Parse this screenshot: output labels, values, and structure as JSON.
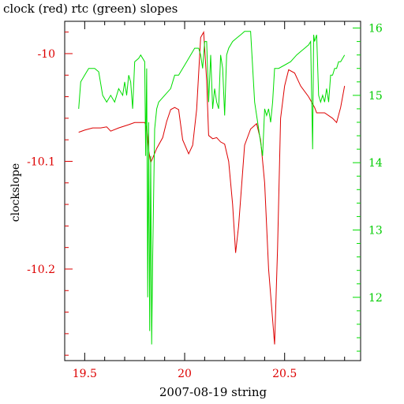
{
  "chart_data": {
    "type": "line",
    "title": "clock (red) rtc (green) slopes",
    "xlabel": "2007-08-19 string",
    "ylabel": "clockslope",
    "xlim": [
      19.4,
      20.88
    ],
    "ylim": [
      -10.285,
      -9.97
    ],
    "y2lim": [
      11.06,
      16.1
    ],
    "x_ticks": [
      19.5,
      20,
      20.5
    ],
    "x_tick_labels": [
      "19.5",
      "20",
      "20.5"
    ],
    "y_ticks": [
      -10,
      -10.1,
      -10.2
    ],
    "y_tick_labels": [
      "-10",
      "-10.1",
      "-10.2"
    ],
    "y2_ticks": [
      12,
      13,
      14,
      15,
      16
    ],
    "y2_tick_labels": [
      "12",
      "13",
      "14",
      "15",
      "16"
    ],
    "colors": {
      "clock": "#dd0000",
      "rtc": "#00dd00",
      "axes": "#000000"
    },
    "series": [
      {
        "name": "clock",
        "axis": "left",
        "x": [
          19.47,
          19.5,
          19.54,
          19.58,
          19.61,
          19.63,
          19.67,
          19.72,
          19.75,
          19.8,
          19.81,
          19.82,
          19.83,
          19.84,
          19.86,
          19.89,
          19.91,
          19.93,
          19.95,
          19.97,
          19.99,
          20.02,
          20.04,
          20.06,
          20.08,
          20.095,
          20.11,
          20.12,
          20.14,
          20.16,
          20.18,
          20.2,
          20.22,
          20.24,
          20.255,
          20.27,
          20.3,
          20.33,
          20.36,
          20.38,
          20.4,
          20.42,
          20.45,
          20.465,
          20.48,
          20.5,
          20.52,
          20.55,
          20.58,
          20.62,
          20.65,
          20.66,
          20.7,
          20.74,
          20.76,
          20.78,
          20.8
        ],
        "y": [
          -10.073,
          -10.071,
          -10.069,
          -10.069,
          -10.068,
          -10.072,
          -10.069,
          -10.066,
          -10.064,
          -10.064,
          -10.068,
          -10.09,
          -10.101,
          -10.097,
          -10.088,
          -10.078,
          -10.063,
          -10.052,
          -10.05,
          -10.052,
          -10.08,
          -10.093,
          -10.085,
          -10.052,
          -9.985,
          -9.98,
          -10.025,
          -10.076,
          -10.079,
          -10.078,
          -10.082,
          -10.084,
          -10.1,
          -10.14,
          -10.185,
          -10.16,
          -10.085,
          -10.07,
          -10.065,
          -10.08,
          -10.12,
          -10.2,
          -10.27,
          -10.18,
          -10.06,
          -10.03,
          -10.015,
          -10.018,
          -10.03,
          -10.04,
          -10.05,
          -10.055,
          -10.055,
          -10.06,
          -10.064,
          -10.05,
          -10.03
        ]
      },
      {
        "name": "rtc",
        "axis": "right",
        "x": [
          19.47,
          19.48,
          19.5,
          19.52,
          19.55,
          19.57,
          19.59,
          19.61,
          19.63,
          19.65,
          19.67,
          19.69,
          19.7,
          19.71,
          19.72,
          19.73,
          19.74,
          19.75,
          19.77,
          19.78,
          19.8,
          19.805,
          19.81,
          19.815,
          19.82,
          19.825,
          19.83,
          19.835,
          19.84,
          19.85,
          19.86,
          19.87,
          19.9,
          19.93,
          19.95,
          19.97,
          19.99,
          20.01,
          20.03,
          20.05,
          20.07,
          20.08,
          20.09,
          20.1,
          20.11,
          20.12,
          20.13,
          20.14,
          20.15,
          20.16,
          20.17,
          20.18,
          20.19,
          20.2,
          20.21,
          20.22,
          20.24,
          20.26,
          20.28,
          20.3,
          20.33,
          20.35,
          20.37,
          20.38,
          20.39,
          20.4,
          20.41,
          20.42,
          20.43,
          20.44,
          20.45,
          20.46,
          20.47,
          20.5,
          20.53,
          20.56,
          20.58,
          20.6,
          20.62,
          20.63,
          20.64,
          20.645,
          20.65,
          20.66,
          20.67,
          20.68,
          20.69,
          20.7,
          20.71,
          20.72,
          20.73,
          20.74,
          20.75,
          20.76,
          20.77,
          20.78,
          20.8
        ],
        "y": [
          14.8,
          15.2,
          15.3,
          15.4,
          15.4,
          15.35,
          15.0,
          14.9,
          15.0,
          14.9,
          15.1,
          15.0,
          15.2,
          15.0,
          15.3,
          15.2,
          14.8,
          15.5,
          15.55,
          15.6,
          15.5,
          14.1,
          15.4,
          12.0,
          14.6,
          11.5,
          14.1,
          11.3,
          12.6,
          14.5,
          14.8,
          14.9,
          15.0,
          15.1,
          15.3,
          15.3,
          15.4,
          15.5,
          15.6,
          15.7,
          15.7,
          15.6,
          15.4,
          15.8,
          15.8,
          14.9,
          15.6,
          14.8,
          15.1,
          14.9,
          14.8,
          15.6,
          15.4,
          14.7,
          15.6,
          15.7,
          15.8,
          15.85,
          15.9,
          15.95,
          15.95,
          14.9,
          14.5,
          14.3,
          14.1,
          14.8,
          14.7,
          14.8,
          14.6,
          14.9,
          15.4,
          15.4,
          15.4,
          15.45,
          15.5,
          15.6,
          15.65,
          15.7,
          15.75,
          15.8,
          14.2,
          15.9,
          15.8,
          15.9,
          15.0,
          14.9,
          15.0,
          14.9,
          15.1,
          14.9,
          15.3,
          15.3,
          15.4,
          15.4,
          15.5,
          15.5,
          15.6
        ]
      }
    ]
  }
}
